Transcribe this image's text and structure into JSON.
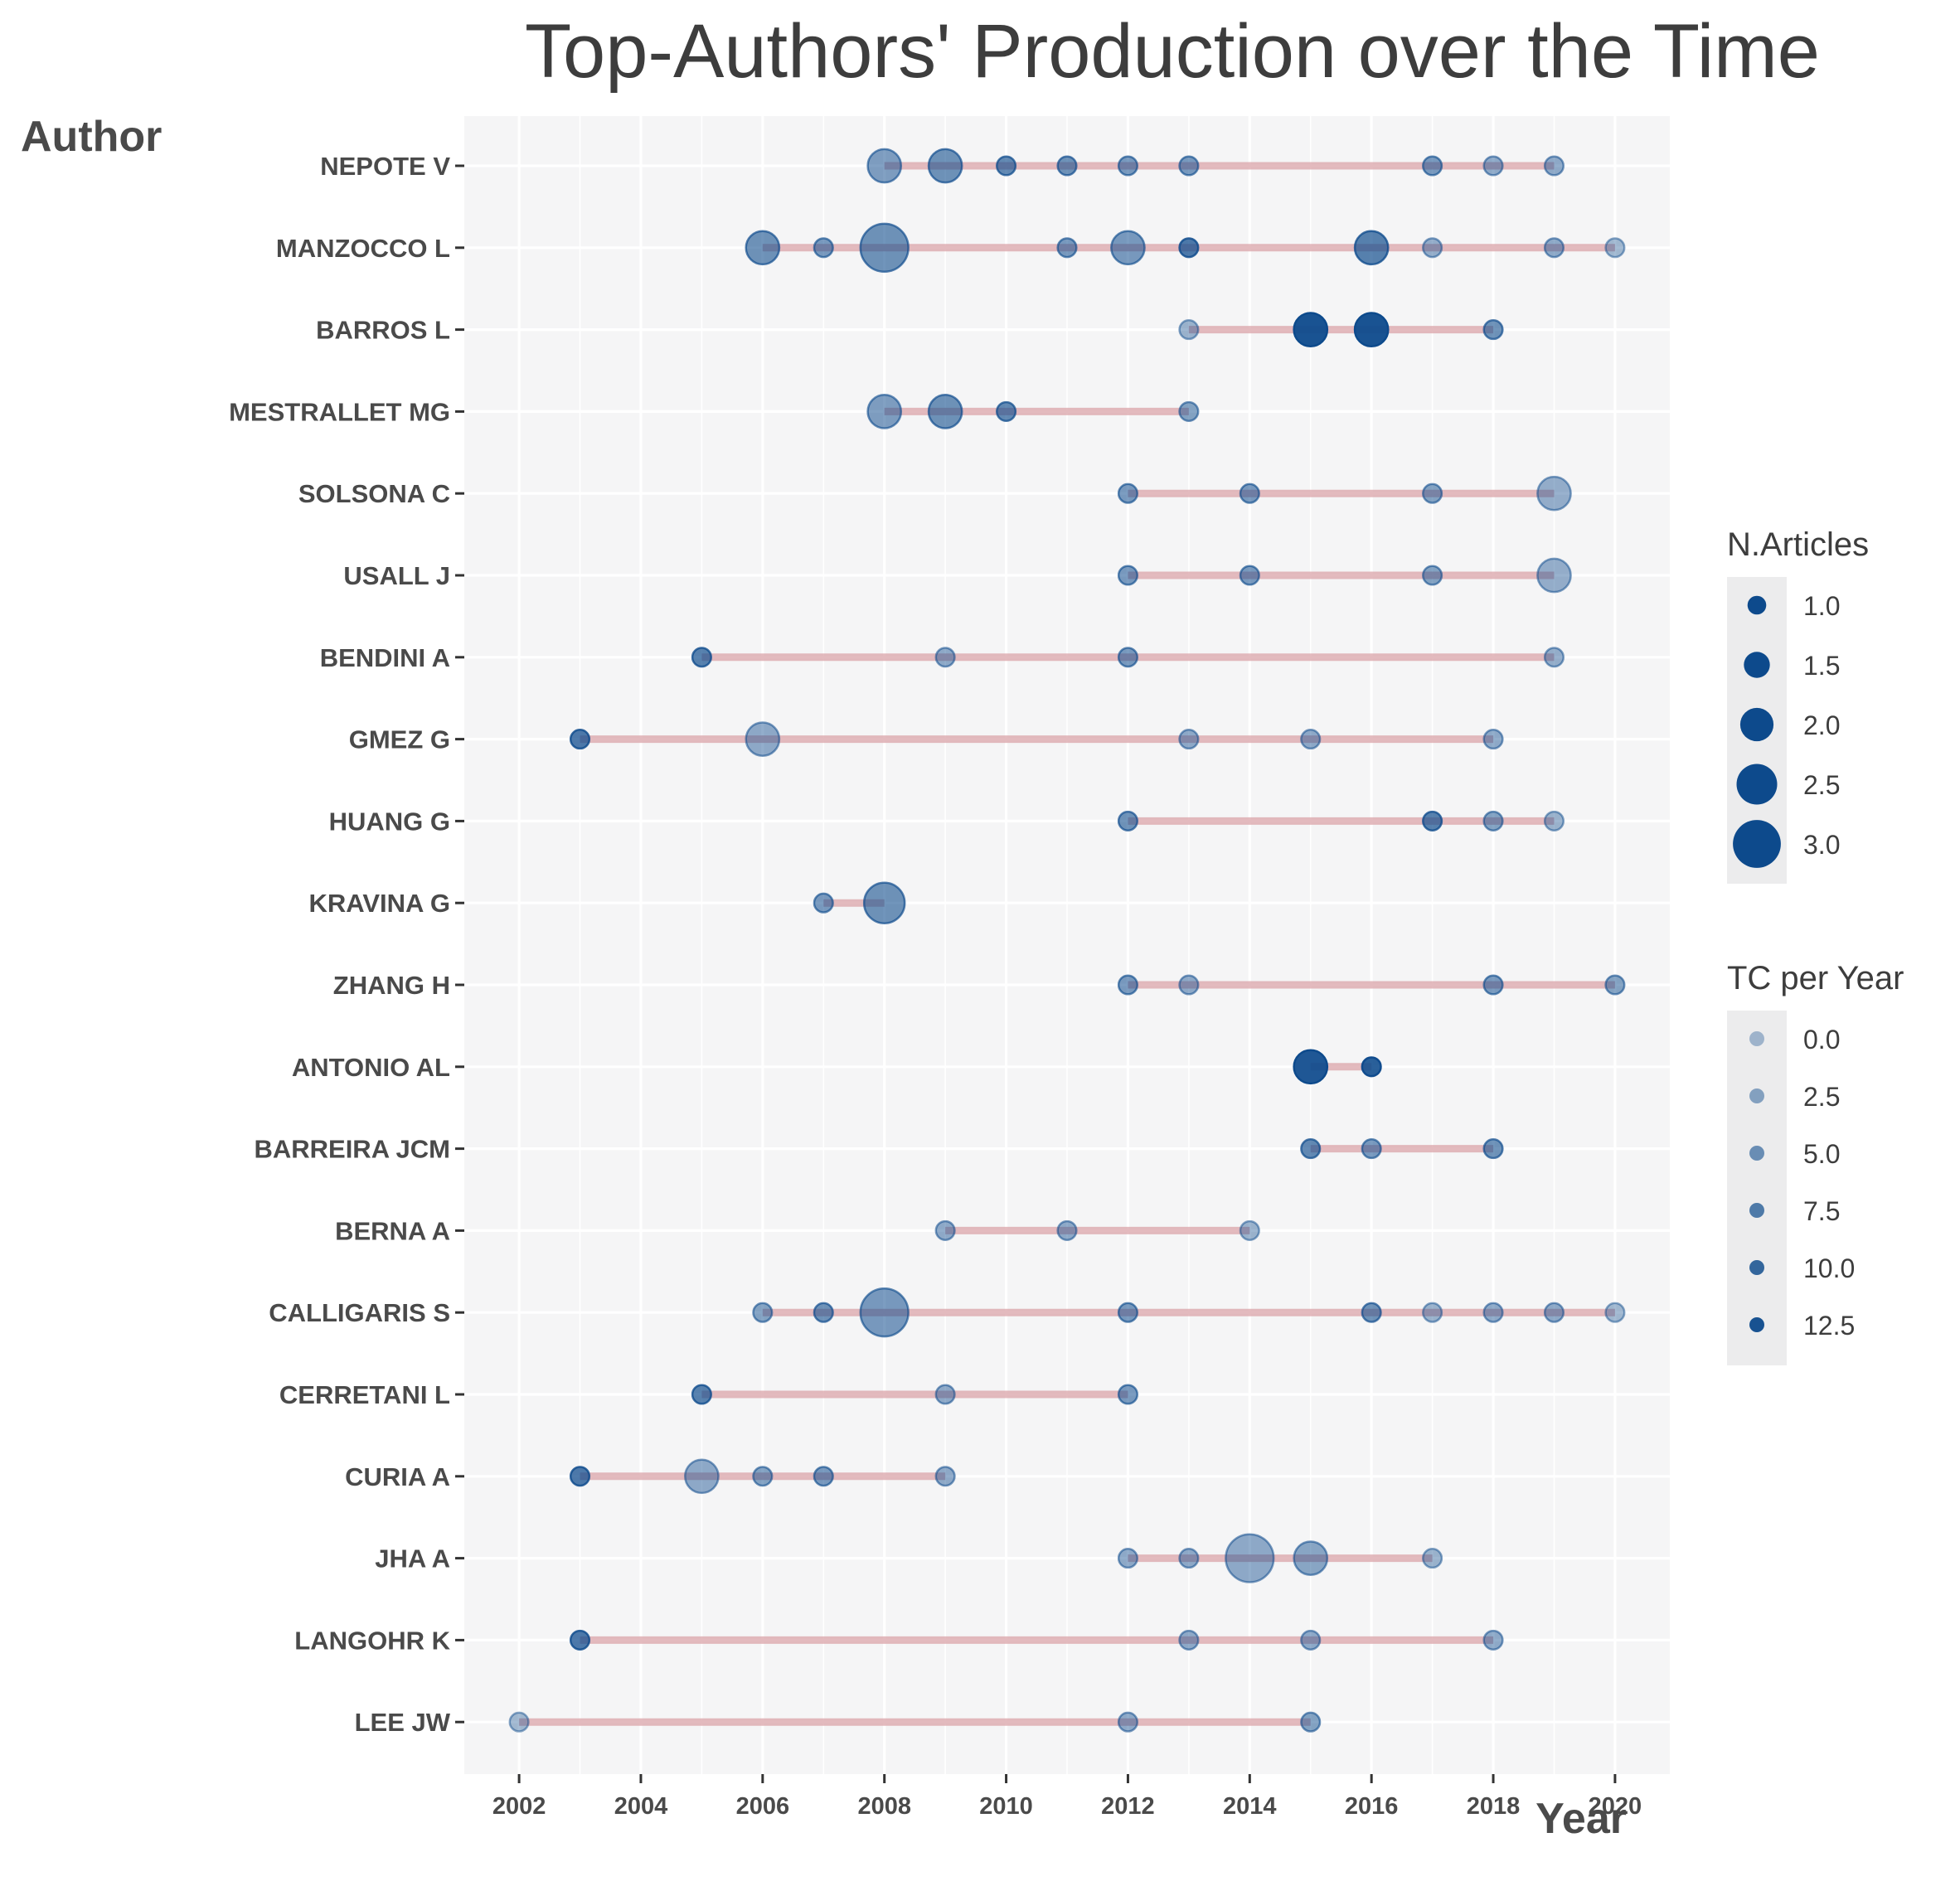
{
  "colors": {
    "panel_bg": "#f5f5f6",
    "grid": "#ffffff",
    "segment": "#d9a3a8",
    "point": "#0d4a8c",
    "text": "#4a4a4a",
    "title_text": "#3d3d3d",
    "legend_key_bg": "#ececed"
  },
  "chart_data": {
    "type": "scatter",
    "title": "Top-Authors' Production over the Time",
    "xlabel": "Year",
    "ylabel": "Author",
    "xlim": [
      2001.1,
      2020.9
    ],
    "x_ticks": [
      2002,
      2004,
      2006,
      2008,
      2010,
      2012,
      2014,
      2016,
      2018,
      2020
    ],
    "x_tick_labels": [
      "2002",
      "2004",
      "2006",
      "2008",
      "2010",
      "2012",
      "2014",
      "2016",
      "2018",
      "2020"
    ],
    "grid": true,
    "legend_position": "right",
    "authors": [
      "NEPOTE V",
      "MANZOCCO L",
      "BARROS L",
      "MESTRALLET MG",
      "SOLSONA C",
      "USALL J",
      "BENDINI A",
      "GMEZ G",
      "HUANG G",
      "KRAVINA G",
      "ZHANG H",
      "ANTONIO AL",
      "BARREIRA JCM",
      "BERNA A",
      "CALLIGARIS S",
      "CERRETANI L",
      "CURIA A",
      "JHA A",
      "LANGOHR K",
      "LEE JW"
    ],
    "segments": [
      {
        "author": "NEPOTE V",
        "from": 2008,
        "to": 2019
      },
      {
        "author": "MANZOCCO L",
        "from": 2006,
        "to": 2020
      },
      {
        "author": "BARROS L",
        "from": 2013,
        "to": 2018
      },
      {
        "author": "MESTRALLET MG",
        "from": 2008,
        "to": 2013
      },
      {
        "author": "SOLSONA C",
        "from": 2012,
        "to": 2019
      },
      {
        "author": "USALL J",
        "from": 2012,
        "to": 2019
      },
      {
        "author": "BENDINI A",
        "from": 2005,
        "to": 2019
      },
      {
        "author": "GMEZ G",
        "from": 2003,
        "to": 2018
      },
      {
        "author": "HUANG G",
        "from": 2012,
        "to": 2019
      },
      {
        "author": "KRAVINA G",
        "from": 2007,
        "to": 2008
      },
      {
        "author": "ZHANG H",
        "from": 2012,
        "to": 2020
      },
      {
        "author": "ANTONIO AL",
        "from": 2015,
        "to": 2016
      },
      {
        "author": "BARREIRA JCM",
        "from": 2015,
        "to": 2018
      },
      {
        "author": "BERNA A",
        "from": 2009,
        "to": 2014
      },
      {
        "author": "CALLIGARIS S",
        "from": 2006,
        "to": 2020
      },
      {
        "author": "CERRETANI L",
        "from": 2005,
        "to": 2012
      },
      {
        "author": "CURIA A",
        "from": 2003,
        "to": 2009
      },
      {
        "author": "JHA A",
        "from": 2012,
        "to": 2017
      },
      {
        "author": "LANGOHR K",
        "from": 2003,
        "to": 2018
      },
      {
        "author": "LEE JW",
        "from": 2002,
        "to": 2015
      }
    ],
    "points": [
      {
        "author": "NEPOTE V",
        "year": 2008,
        "articles": 2,
        "tc_per_year": 3.5
      },
      {
        "author": "NEPOTE V",
        "year": 2009,
        "articles": 2,
        "tc_per_year": 5
      },
      {
        "author": "NEPOTE V",
        "year": 2010,
        "articles": 1,
        "tc_per_year": 6
      },
      {
        "author": "NEPOTE V",
        "year": 2011,
        "articles": 1,
        "tc_per_year": 5
      },
      {
        "author": "NEPOTE V",
        "year": 2012,
        "articles": 1,
        "tc_per_year": 4
      },
      {
        "author": "NEPOTE V",
        "year": 2013,
        "articles": 1,
        "tc_per_year": 4
      },
      {
        "author": "NEPOTE V",
        "year": 2017,
        "articles": 1,
        "tc_per_year": 4
      },
      {
        "author": "NEPOTE V",
        "year": 2018,
        "articles": 1,
        "tc_per_year": 2
      },
      {
        "author": "NEPOTE V",
        "year": 2019,
        "articles": 1,
        "tc_per_year": 2
      },
      {
        "author": "MANZOCCO L",
        "year": 2006,
        "articles": 2,
        "tc_per_year": 5
      },
      {
        "author": "MANZOCCO L",
        "year": 2007,
        "articles": 1,
        "tc_per_year": 4
      },
      {
        "author": "MANZOCCO L",
        "year": 2008,
        "articles": 3,
        "tc_per_year": 5
      },
      {
        "author": "MANZOCCO L",
        "year": 2011,
        "articles": 1,
        "tc_per_year": 4
      },
      {
        "author": "MANZOCCO L",
        "year": 2012,
        "articles": 2,
        "tc_per_year": 4
      },
      {
        "author": "MANZOCCO L",
        "year": 2013,
        "articles": 1,
        "tc_per_year": 8
      },
      {
        "author": "MANZOCCO L",
        "year": 2016,
        "articles": 2,
        "tc_per_year": 7
      },
      {
        "author": "MANZOCCO L",
        "year": 2017,
        "articles": 1,
        "tc_per_year": 1.5
      },
      {
        "author": "MANZOCCO L",
        "year": 2019,
        "articles": 1,
        "tc_per_year": 2
      },
      {
        "author": "MANZOCCO L",
        "year": 2020,
        "articles": 1,
        "tc_per_year": 0.5
      },
      {
        "author": "BARROS L",
        "year": 2013,
        "articles": 1,
        "tc_per_year": 1
      },
      {
        "author": "BARROS L",
        "year": 2015,
        "articles": 2,
        "tc_per_year": 13
      },
      {
        "author": "BARROS L",
        "year": 2016,
        "articles": 2,
        "tc_per_year": 13
      },
      {
        "author": "BARROS L",
        "year": 2018,
        "articles": 1,
        "tc_per_year": 5
      },
      {
        "author": "MESTRALLET MG",
        "year": 2008,
        "articles": 2,
        "tc_per_year": 3.5
      },
      {
        "author": "MESTRALLET MG",
        "year": 2009,
        "articles": 2,
        "tc_per_year": 5
      },
      {
        "author": "MESTRALLET MG",
        "year": 2010,
        "articles": 1,
        "tc_per_year": 6
      },
      {
        "author": "MESTRALLET MG",
        "year": 2013,
        "articles": 1,
        "tc_per_year": 3
      },
      {
        "author": "SOLSONA C",
        "year": 2012,
        "articles": 1,
        "tc_per_year": 4
      },
      {
        "author": "SOLSONA C",
        "year": 2014,
        "articles": 1,
        "tc_per_year": 4
      },
      {
        "author": "SOLSONA C",
        "year": 2017,
        "articles": 1,
        "tc_per_year": 3
      },
      {
        "author": "SOLSONA C",
        "year": 2019,
        "articles": 2,
        "tc_per_year": 1.5
      },
      {
        "author": "USALL J",
        "year": 2012,
        "articles": 1,
        "tc_per_year": 4
      },
      {
        "author": "USALL J",
        "year": 2014,
        "articles": 1,
        "tc_per_year": 4
      },
      {
        "author": "USALL J",
        "year": 2017,
        "articles": 1,
        "tc_per_year": 3
      },
      {
        "author": "USALL J",
        "year": 2019,
        "articles": 2,
        "tc_per_year": 1.5
      },
      {
        "author": "BENDINI A",
        "year": 2005,
        "articles": 1,
        "tc_per_year": 7
      },
      {
        "author": "BENDINI A",
        "year": 2009,
        "articles": 1,
        "tc_per_year": 2
      },
      {
        "author": "BENDINI A",
        "year": 2012,
        "articles": 1,
        "tc_per_year": 4
      },
      {
        "author": "BENDINI A",
        "year": 2019,
        "articles": 1,
        "tc_per_year": 1.5
      },
      {
        "author": "GMEZ G",
        "year": 2003,
        "articles": 1,
        "tc_per_year": 8
      },
      {
        "author": "GMEZ G",
        "year": 2006,
        "articles": 2,
        "tc_per_year": 2
      },
      {
        "author": "GMEZ G",
        "year": 2013,
        "articles": 1,
        "tc_per_year": 2
      },
      {
        "author": "GMEZ G",
        "year": 2015,
        "articles": 1,
        "tc_per_year": 2
      },
      {
        "author": "GMEZ G",
        "year": 2018,
        "articles": 1,
        "tc_per_year": 2
      },
      {
        "author": "HUANG G",
        "year": 2012,
        "articles": 1,
        "tc_per_year": 5
      },
      {
        "author": "HUANG G",
        "year": 2017,
        "articles": 1,
        "tc_per_year": 7
      },
      {
        "author": "HUANG G",
        "year": 2018,
        "articles": 1,
        "tc_per_year": 3
      },
      {
        "author": "HUANG G",
        "year": 2019,
        "articles": 1,
        "tc_per_year": 1
      },
      {
        "author": "KRAVINA G",
        "year": 2007,
        "articles": 1,
        "tc_per_year": 4
      },
      {
        "author": "KRAVINA G",
        "year": 2008,
        "articles": 2.5,
        "tc_per_year": 5
      },
      {
        "author": "ZHANG H",
        "year": 2012,
        "articles": 1,
        "tc_per_year": 4
      },
      {
        "author": "ZHANG H",
        "year": 2013,
        "articles": 1,
        "tc_per_year": 2
      },
      {
        "author": "ZHANG H",
        "year": 2018,
        "articles": 1,
        "tc_per_year": 4
      },
      {
        "author": "ZHANG H",
        "year": 2020,
        "articles": 1,
        "tc_per_year": 3
      },
      {
        "author": "ANTONIO AL",
        "year": 2015,
        "articles": 2,
        "tc_per_year": 12
      },
      {
        "author": "ANTONIO AL",
        "year": 2016,
        "articles": 1,
        "tc_per_year": 11
      },
      {
        "author": "BARREIRA JCM",
        "year": 2015,
        "articles": 1,
        "tc_per_year": 6
      },
      {
        "author": "BARREIRA JCM",
        "year": 2016,
        "articles": 1,
        "tc_per_year": 4
      },
      {
        "author": "BARREIRA JCM",
        "year": 2018,
        "articles": 1,
        "tc_per_year": 5
      },
      {
        "author": "BERNA A",
        "year": 2009,
        "articles": 1,
        "tc_per_year": 2
      },
      {
        "author": "BERNA A",
        "year": 2011,
        "articles": 1,
        "tc_per_year": 2
      },
      {
        "author": "BERNA A",
        "year": 2014,
        "articles": 1,
        "tc_per_year": 1
      },
      {
        "author": "CALLIGARIS S",
        "year": 2006,
        "articles": 1,
        "tc_per_year": 3
      },
      {
        "author": "CALLIGARIS S",
        "year": 2007,
        "articles": 1,
        "tc_per_year": 5
      },
      {
        "author": "CALLIGARIS S",
        "year": 2008,
        "articles": 3,
        "tc_per_year": 4
      },
      {
        "author": "CALLIGARIS S",
        "year": 2012,
        "articles": 1,
        "tc_per_year": 4
      },
      {
        "author": "CALLIGARIS S",
        "year": 2016,
        "articles": 1,
        "tc_per_year": 5
      },
      {
        "author": "CALLIGARIS S",
        "year": 2017,
        "articles": 1,
        "tc_per_year": 1
      },
      {
        "author": "CALLIGARIS S",
        "year": 2018,
        "articles": 1,
        "tc_per_year": 2
      },
      {
        "author": "CALLIGARIS S",
        "year": 2019,
        "articles": 1,
        "tc_per_year": 2
      },
      {
        "author": "CALLIGARIS S",
        "year": 2020,
        "articles": 1,
        "tc_per_year": 0.5
      },
      {
        "author": "CERRETANI L",
        "year": 2005,
        "articles": 1,
        "tc_per_year": 7
      },
      {
        "author": "CERRETANI L",
        "year": 2009,
        "articles": 1,
        "tc_per_year": 2
      },
      {
        "author": "CERRETANI L",
        "year": 2012,
        "articles": 1,
        "tc_per_year": 4
      },
      {
        "author": "CURIA A",
        "year": 2003,
        "articles": 1,
        "tc_per_year": 8
      },
      {
        "author": "CURIA A",
        "year": 2005,
        "articles": 2,
        "tc_per_year": 2
      },
      {
        "author": "CURIA A",
        "year": 2006,
        "articles": 1,
        "tc_per_year": 3
      },
      {
        "author": "CURIA A",
        "year": 2007,
        "articles": 1,
        "tc_per_year": 4
      },
      {
        "author": "CURIA A",
        "year": 2009,
        "articles": 1,
        "tc_per_year": 2
      },
      {
        "author": "JHA A",
        "year": 2012,
        "articles": 1,
        "tc_per_year": 2
      },
      {
        "author": "JHA A",
        "year": 2013,
        "articles": 1,
        "tc_per_year": 2
      },
      {
        "author": "JHA A",
        "year": 2014,
        "articles": 3,
        "tc_per_year": 2
      },
      {
        "author": "JHA A",
        "year": 2015,
        "articles": 2,
        "tc_per_year": 2.5
      },
      {
        "author": "JHA A",
        "year": 2017,
        "articles": 1,
        "tc_per_year": 1
      },
      {
        "author": "LANGOHR K",
        "year": 2003,
        "articles": 1,
        "tc_per_year": 8
      },
      {
        "author": "LANGOHR K",
        "year": 2013,
        "articles": 1,
        "tc_per_year": 2
      },
      {
        "author": "LANGOHR K",
        "year": 2015,
        "articles": 1,
        "tc_per_year": 2
      },
      {
        "author": "LANGOHR K",
        "year": 2018,
        "articles": 1,
        "tc_per_year": 2
      },
      {
        "author": "LEE JW",
        "year": 2002,
        "articles": 1,
        "tc_per_year": 0.5
      },
      {
        "author": "LEE JW",
        "year": 2012,
        "articles": 1,
        "tc_per_year": 2
      },
      {
        "author": "LEE JW",
        "year": 2015,
        "articles": 1,
        "tc_per_year": 3
      }
    ],
    "legends": {
      "size": {
        "title": "N.Articles",
        "values": [
          1.0,
          1.5,
          2.0,
          2.5,
          3.0
        ],
        "labels": [
          "1.0",
          "1.5",
          "2.0",
          "2.5",
          "3.0"
        ]
      },
      "alpha": {
        "title": "TC per Year",
        "values": [
          0.0,
          2.5,
          5.0,
          7.5,
          10.0,
          12.5
        ],
        "labels": [
          "0.0",
          "2.5",
          "5.0",
          "7.5",
          "10.0",
          "12.5"
        ]
      }
    }
  }
}
